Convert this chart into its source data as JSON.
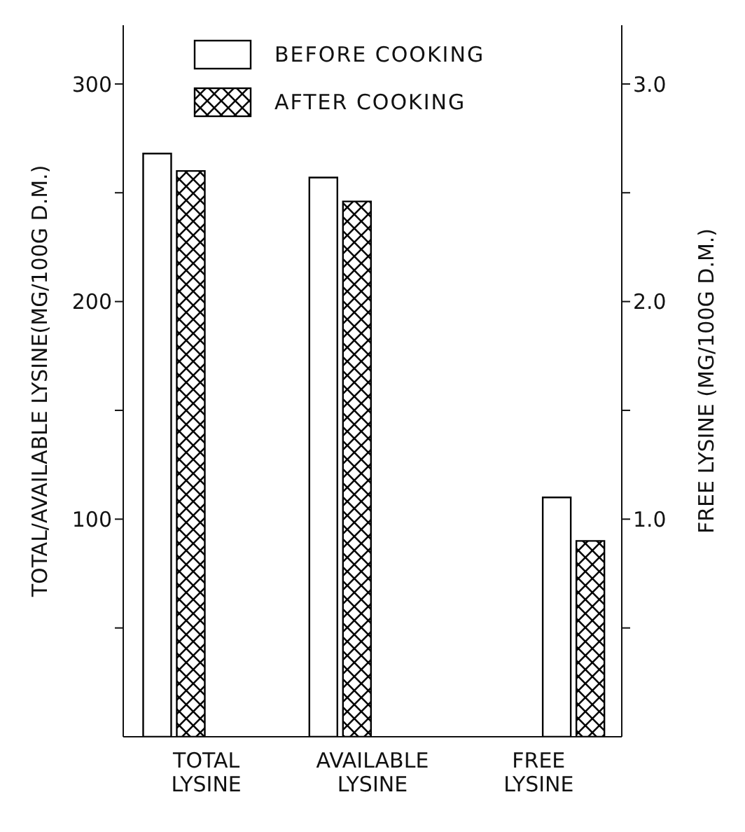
{
  "chart_data": {
    "type": "bar",
    "categories": [
      "TOTAL LYSINE",
      "AVAILABLE LYSINE",
      "FREE LYSINE"
    ],
    "ylabel": "TOTAL/AVAILABLE LYSINE(MG/100G D.M.)",
    "y2label": "FREE LYSINE (MG/100G D.M.)",
    "series": [
      {
        "name": "BEFORE COOKING",
        "color": "#ffffff",
        "values": [
          268,
          257,
          null
        ]
      },
      {
        "name": "AFTER COOKING",
        "color": "#000000",
        "values": [
          260,
          246,
          null
        ]
      },
      {
        "color": "#ffffff",
        "axis": "y2",
        "values": [
          null,
          null,
          1.1
        ]
      },
      {
        "color": "#000000",
        "axis": "y2",
        "values": [
          null,
          null,
          0.9
        ]
      }
    ],
    "ylim": [
      0,
      327
    ],
    "yticks": [
      {
        "value": 50,
        "label": null
      },
      100,
      {
        "value": 150,
        "label": null
      },
      200,
      {
        "value": 250,
        "label": null
      },
      300
    ],
    "y2lim": [
      0,
      3.27
    ],
    "y2ticks": [
      {
        "value": 0.5,
        "label": null
      },
      {
        "value": 1,
        "label": "1.0"
      },
      {
        "value": 1.5,
        "label": null
      },
      {
        "value": 2,
        "label": "2.0"
      },
      {
        "value": 2.5,
        "label": null
      },
      {
        "value": 3,
        "label": "3.0"
      }
    ],
    "legend": "top left",
    "grid": false
  }
}
